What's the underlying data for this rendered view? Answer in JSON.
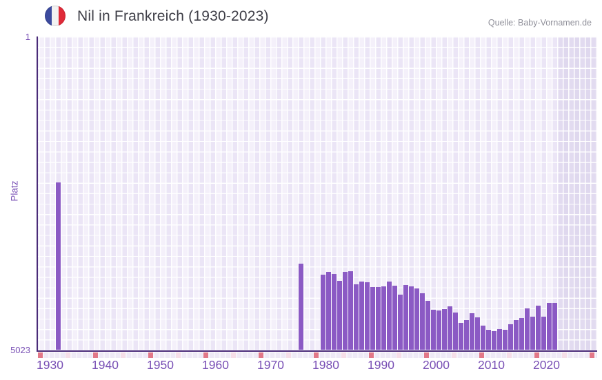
{
  "header": {
    "title": "Nil in Frankreich (1930-2023)",
    "flag_icon": "france-flag-roundel",
    "source": "Quelle: Baby-Vornamen.de"
  },
  "chart_data": {
    "type": "bar",
    "title": "Nil in Frankreich (1930-2023)",
    "xlabel": "",
    "ylabel": "Platz",
    "y_axis": {
      "reversed": true,
      "top_value": 1,
      "bottom_value": 5023,
      "tick_labels": [
        "1",
        "5023"
      ]
    },
    "x_axis": {
      "year_range": [
        1928,
        2029
      ],
      "ticks": [
        {
          "year": 1930,
          "label": "1930"
        },
        {
          "year": 1940,
          "label": "1940"
        },
        {
          "year": 1950,
          "label": "1950"
        },
        {
          "year": 1960,
          "label": "1960"
        },
        {
          "year": 1970,
          "label": "1970"
        },
        {
          "year": 1980,
          "label": "1980"
        },
        {
          "year": 1990,
          "label": "1990"
        },
        {
          "year": 2000,
          "label": "2000"
        },
        {
          "year": 2010,
          "label": "2010"
        },
        {
          "year": 2020,
          "label": "2020"
        }
      ]
    },
    "no_data_band_start_year": 2022,
    "series": [
      {
        "name": "Platz",
        "points": [
          {
            "year": 1931,
            "rank": 2340
          },
          {
            "year": 1975,
            "rank": 3635
          },
          {
            "year": 1979,
            "rank": 3820
          },
          {
            "year": 1980,
            "rank": 3768
          },
          {
            "year": 1981,
            "rank": 3805
          },
          {
            "year": 1982,
            "rank": 3915
          },
          {
            "year": 1983,
            "rank": 3775
          },
          {
            "year": 1984,
            "rank": 3757
          },
          {
            "year": 1985,
            "rank": 3970
          },
          {
            "year": 1986,
            "rank": 3923
          },
          {
            "year": 1987,
            "rank": 3938
          },
          {
            "year": 1988,
            "rank": 4011
          },
          {
            "year": 1989,
            "rank": 4011
          },
          {
            "year": 1990,
            "rank": 4007
          },
          {
            "year": 1991,
            "rank": 3923
          },
          {
            "year": 1992,
            "rank": 3989
          },
          {
            "year": 1993,
            "rank": 4137
          },
          {
            "year": 1994,
            "rank": 3978
          },
          {
            "year": 1995,
            "rank": 4007
          },
          {
            "year": 1996,
            "rank": 4033
          },
          {
            "year": 1997,
            "rank": 4115
          },
          {
            "year": 1998,
            "rank": 4230
          },
          {
            "year": 1999,
            "rank": 4383
          },
          {
            "year": 2000,
            "rank": 4390
          },
          {
            "year": 2001,
            "rank": 4364
          },
          {
            "year": 2002,
            "rank": 4320
          },
          {
            "year": 2003,
            "rank": 4427
          },
          {
            "year": 2004,
            "rank": 4585
          },
          {
            "year": 2005,
            "rank": 4541
          },
          {
            "year": 2006,
            "rank": 4430
          },
          {
            "year": 2007,
            "rank": 4504
          },
          {
            "year": 2008,
            "rank": 4633
          },
          {
            "year": 2009,
            "rank": 4700
          },
          {
            "year": 2010,
            "rank": 4715
          },
          {
            "year": 2011,
            "rank": 4690
          },
          {
            "year": 2012,
            "rank": 4700
          },
          {
            "year": 2013,
            "rank": 4611
          },
          {
            "year": 2014,
            "rank": 4541
          },
          {
            "year": 2015,
            "rank": 4515
          },
          {
            "year": 2016,
            "rank": 4357
          },
          {
            "year": 2017,
            "rank": 4485
          },
          {
            "year": 2018,
            "rank": 4309
          },
          {
            "year": 2019,
            "rank": 4493
          },
          {
            "year": 2020,
            "rank": 4265
          },
          {
            "year": 2021,
            "rank": 4265
          }
        ]
      }
    ],
    "marker_strip": {
      "decade_marker_years": [
        1928,
        1938,
        1948,
        1958,
        1968,
        1978,
        1988,
        1998,
        2008,
        2018,
        2028
      ],
      "half_decade_marker_years": [
        1933,
        1943,
        1953,
        1963,
        1973,
        1983,
        1993,
        2003,
        2013,
        2023
      ]
    },
    "layout": {
      "grid": true,
      "legend": "none",
      "bar_color": "#8b5ac4",
      "axis_line_color": "#4a2b78",
      "tick_text_color": "#7950b5",
      "title_color": "#3d3d46",
      "source_color": "#90909a",
      "plot_bg_color": "#f4f0fa",
      "plot_bg_alt_color": "#ebe5f6",
      "no_data_band_color": "#d9d2ea",
      "strip_base_color": "#eee9f6",
      "strip_decade_color": "#e27888",
      "strip_half_decade_color": "#f6dee8"
    }
  }
}
